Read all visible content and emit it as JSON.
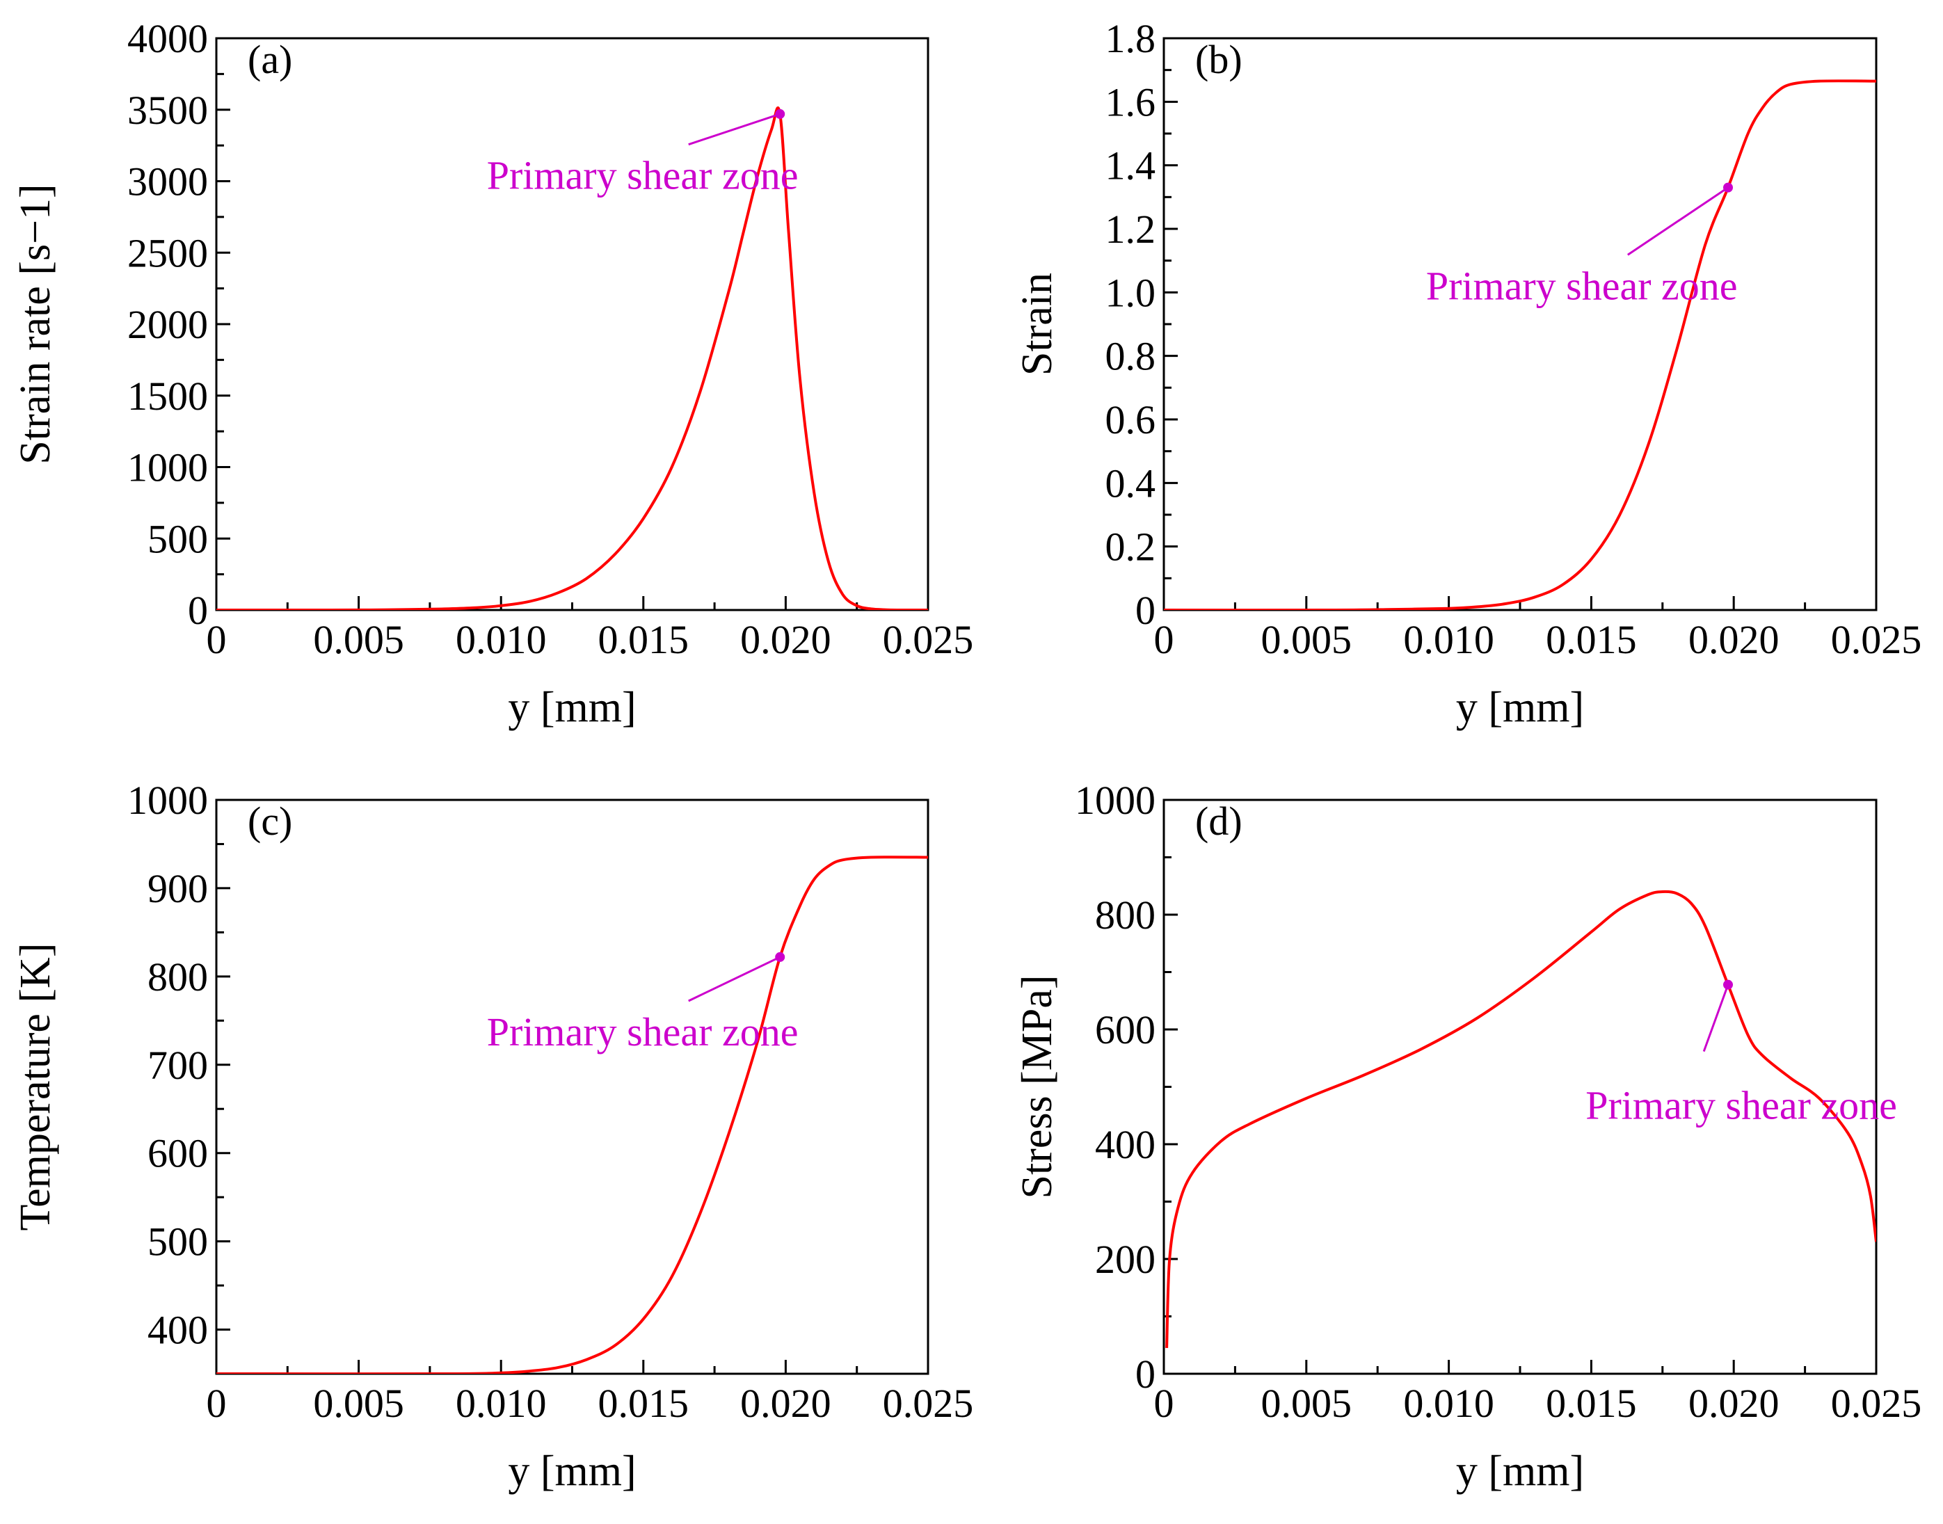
{
  "chart_data": [
    {
      "panel": "(a)",
      "type": "line",
      "xlabel": "y [mm]",
      "ylabel": "Strain rate [s−1]",
      "xlim": [
        0,
        0.025
      ],
      "ylim": [
        0,
        4000
      ],
      "xticks": [
        0,
        0.005,
        0.01,
        0.015,
        0.02,
        0.025
      ],
      "xtick_labels": [
        "0",
        "0.005",
        "0.010",
        "0.015",
        "0.020",
        "0.025"
      ],
      "yticks": [
        0,
        500,
        1000,
        1500,
        2000,
        2500,
        3000,
        3500,
        4000
      ],
      "ytick_labels": [
        "0",
        "500",
        "1000",
        "1500",
        "2000",
        "2500",
        "3000",
        "3500",
        "4000"
      ],
      "color": "#ff0000",
      "series": [
        {
          "x": [
            0,
            0.004,
            0.006,
            0.008,
            0.009,
            0.01,
            0.011,
            0.012,
            0.013,
            0.014,
            0.015,
            0.016,
            0.017,
            0.018,
            0.0185,
            0.019,
            0.0195,
            0.0198,
            0.0201,
            0.0205,
            0.021,
            0.0215,
            0.022,
            0.0225,
            0.023,
            0.0235,
            0.024,
            0.025
          ],
          "y": [
            0,
            0,
            2,
            8,
            15,
            30,
            60,
            120,
            220,
            390,
            640,
            1000,
            1530,
            2230,
            2630,
            3030,
            3360,
            3470,
            2650,
            1620,
            820,
            340,
            110,
            30,
            8,
            2,
            0,
            0
          ]
        }
      ],
      "annotation": {
        "text": "Primary shear zone",
        "point": [
          0.0198,
          3470
        ],
        "label_at": [
          0.0095,
          3150
        ],
        "color": "#cc00cc"
      }
    },
    {
      "panel": "(b)",
      "type": "line",
      "xlabel": "y [mm]",
      "ylabel": "Strain",
      "xlim": [
        0,
        0.025
      ],
      "ylim": [
        0,
        1.8
      ],
      "xticks": [
        0,
        0.005,
        0.01,
        0.015,
        0.02,
        0.025
      ],
      "xtick_labels": [
        "0",
        "0.005",
        "0.010",
        "0.015",
        "0.020",
        "0.025"
      ],
      "yticks": [
        0,
        0.2,
        0.4,
        0.6,
        0.8,
        1.0,
        1.2,
        1.4,
        1.6,
        1.8
      ],
      "ytick_labels": [
        "0",
        "0.2",
        "0.4",
        "0.6",
        "0.8",
        "1.0",
        "1.2",
        "1.4",
        "1.6",
        "1.8"
      ],
      "color": "#ff0000",
      "series": [
        {
          "x": [
            0,
            0.006,
            0.008,
            0.01,
            0.011,
            0.012,
            0.013,
            0.014,
            0.015,
            0.016,
            0.017,
            0.018,
            0.019,
            0.0198,
            0.0205,
            0.021,
            0.0215,
            0.022,
            0.023,
            0.025
          ],
          "y": [
            0,
            0,
            0.002,
            0.005,
            0.01,
            0.02,
            0.04,
            0.08,
            0.16,
            0.3,
            0.52,
            0.82,
            1.15,
            1.33,
            1.5,
            1.58,
            1.63,
            1.655,
            1.665,
            1.665
          ]
        }
      ],
      "annotation": {
        "text": "Primary shear zone",
        "point": [
          0.0198,
          1.33
        ],
        "label_at": [
          0.0092,
          1.07
        ],
        "color": "#cc00cc"
      }
    },
    {
      "panel": "(c)",
      "type": "line",
      "xlabel": "y [mm]",
      "ylabel": "Temperature [K]",
      "xlim": [
        0,
        0.025
      ],
      "ylim": [
        350,
        1000
      ],
      "xticks": [
        0,
        0.005,
        0.01,
        0.015,
        0.02,
        0.025
      ],
      "xtick_labels": [
        "0",
        "0.005",
        "0.010",
        "0.015",
        "0.020",
        "0.025"
      ],
      "yticks": [
        400,
        500,
        600,
        700,
        800,
        900,
        1000
      ],
      "ytick_labels": [
        "400",
        "500",
        "600",
        "700",
        "800",
        "900",
        "1000"
      ],
      "x_zero_label": "0",
      "color": "#ff0000",
      "series": [
        {
          "x": [
            0,
            0.008,
            0.01,
            0.011,
            0.012,
            0.013,
            0.014,
            0.015,
            0.016,
            0.017,
            0.018,
            0.019,
            0.0198,
            0.0205,
            0.021,
            0.0215,
            0.022,
            0.023,
            0.025
          ],
          "y": [
            350,
            350,
            351,
            353,
            357,
            366,
            382,
            412,
            460,
            532,
            622,
            725,
            822,
            880,
            910,
            925,
            932,
            935,
            935
          ]
        }
      ],
      "annotation": {
        "text": "Primary shear zone",
        "point": [
          0.0198,
          822
        ],
        "label_at": [
          0.0095,
          755
        ],
        "color": "#cc00cc"
      }
    },
    {
      "panel": "(d)",
      "type": "line",
      "xlabel": "y [mm]",
      "ylabel": "Stress [MPa]",
      "xlim": [
        0,
        0.025
      ],
      "ylim": [
        0,
        1000
      ],
      "xticks": [
        0,
        0.005,
        0.01,
        0.015,
        0.02,
        0.025
      ],
      "xtick_labels": [
        "0",
        "0.005",
        "0.010",
        "0.015",
        "0.020",
        "0.025"
      ],
      "yticks": [
        0,
        200,
        400,
        600,
        800,
        1000
      ],
      "ytick_labels": [
        "0",
        "200",
        "400",
        "600",
        "800",
        "1000"
      ],
      "color": "#ff0000",
      "series": [
        {
          "x": [
            0.0001,
            0.0002,
            0.0005,
            0.001,
            0.002,
            0.003,
            0.005,
            0.007,
            0.009,
            0.011,
            0.013,
            0.015,
            0.016,
            0.017,
            0.0175,
            0.018,
            0.0185,
            0.019,
            0.0198,
            0.0205,
            0.021,
            0.022,
            0.023,
            0.024,
            0.0245,
            0.0248,
            0.025
          ],
          "y": [
            45,
            200,
            290,
            350,
            405,
            435,
            480,
            520,
            565,
            620,
            690,
            770,
            810,
            835,
            840,
            837,
            820,
            780,
            678,
            590,
            555,
            515,
            480,
            420,
            365,
            310,
            230
          ]
        }
      ],
      "annotation": {
        "text": "Primary shear zone",
        "point": [
          0.0198,
          678
        ],
        "label_at": [
          0.0148,
          495
        ],
        "color": "#cc00cc"
      }
    }
  ]
}
